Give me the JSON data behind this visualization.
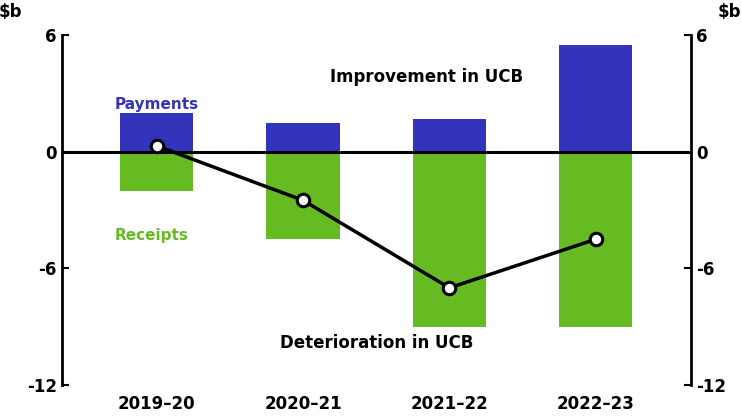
{
  "categories": [
    "2019–20",
    "2020–21",
    "2021–22",
    "2022–23"
  ],
  "payments": [
    2.0,
    1.5,
    1.7,
    5.5
  ],
  "receipts": [
    -2.0,
    -4.5,
    -9.0,
    -9.0
  ],
  "line_values": [
    0.3,
    -2.5,
    -7.0,
    -4.5
  ],
  "payments_color": "#3333bb",
  "receipts_color": "#66bb22",
  "line_color": "#000000",
  "bar_width": 0.5,
  "ylim": [
    -12,
    6
  ],
  "yticks": [
    -12,
    -6,
    0,
    6
  ],
  "title_improvement": "Improvement in UCB",
  "title_deterioration": "Deterioration in UCB",
  "payments_label": "Payments",
  "receipts_label": "Receipts",
  "background_color": "#ffffff"
}
